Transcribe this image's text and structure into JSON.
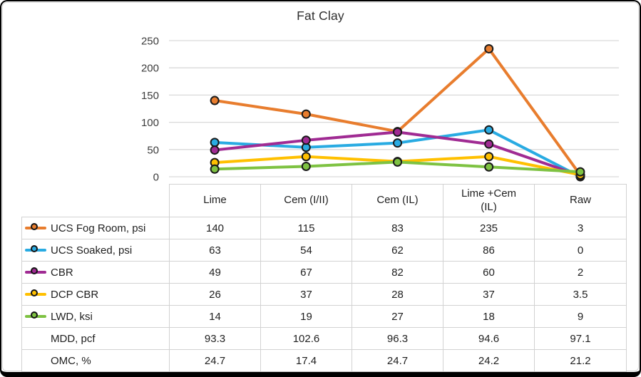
{
  "chart_data": {
    "type": "line",
    "title": "Fat Clay",
    "categories": [
      "Lime",
      "Cem (I/II)",
      "Cem (IL)",
      "Lime +Cem (IL)",
      "Raw"
    ],
    "series": [
      {
        "name": "UCS Fog Room, psi",
        "color": "#e87d2e",
        "values": [
          140,
          115,
          83,
          235,
          3
        ]
      },
      {
        "name": "UCS Soaked, psi",
        "color": "#29abe2",
        "values": [
          63,
          54,
          62,
          86,
          0
        ]
      },
      {
        "name": "CBR",
        "color": "#a02b93",
        "values": [
          49,
          67,
          82,
          60,
          2
        ]
      },
      {
        "name": "DCP CBR",
        "color": "#ffc000",
        "values": [
          26,
          37,
          28,
          37,
          3.5
        ]
      },
      {
        "name": "LWD, ksi",
        "color": "#7ec242",
        "values": [
          14,
          19,
          27,
          18,
          9
        ]
      }
    ],
    "yticks": [
      0,
      50,
      100,
      150,
      200,
      250
    ],
    "ylim": [
      0,
      250
    ],
    "grid": true,
    "gridline_color": "#d9d9d9",
    "axis_text_color": "#3d3d3d",
    "marker": "circle",
    "marker_outline": "#1a1a1a",
    "legend_position": "table-rows-left"
  },
  "table": {
    "extra_rows": [
      {
        "label": "MDD, pcf",
        "values": [
          93.3,
          102.6,
          96.3,
          94.6,
          97.1
        ]
      },
      {
        "label": "OMC, %",
        "values": [
          24.7,
          17.4,
          24.7,
          24.2,
          21.2
        ]
      }
    ]
  }
}
